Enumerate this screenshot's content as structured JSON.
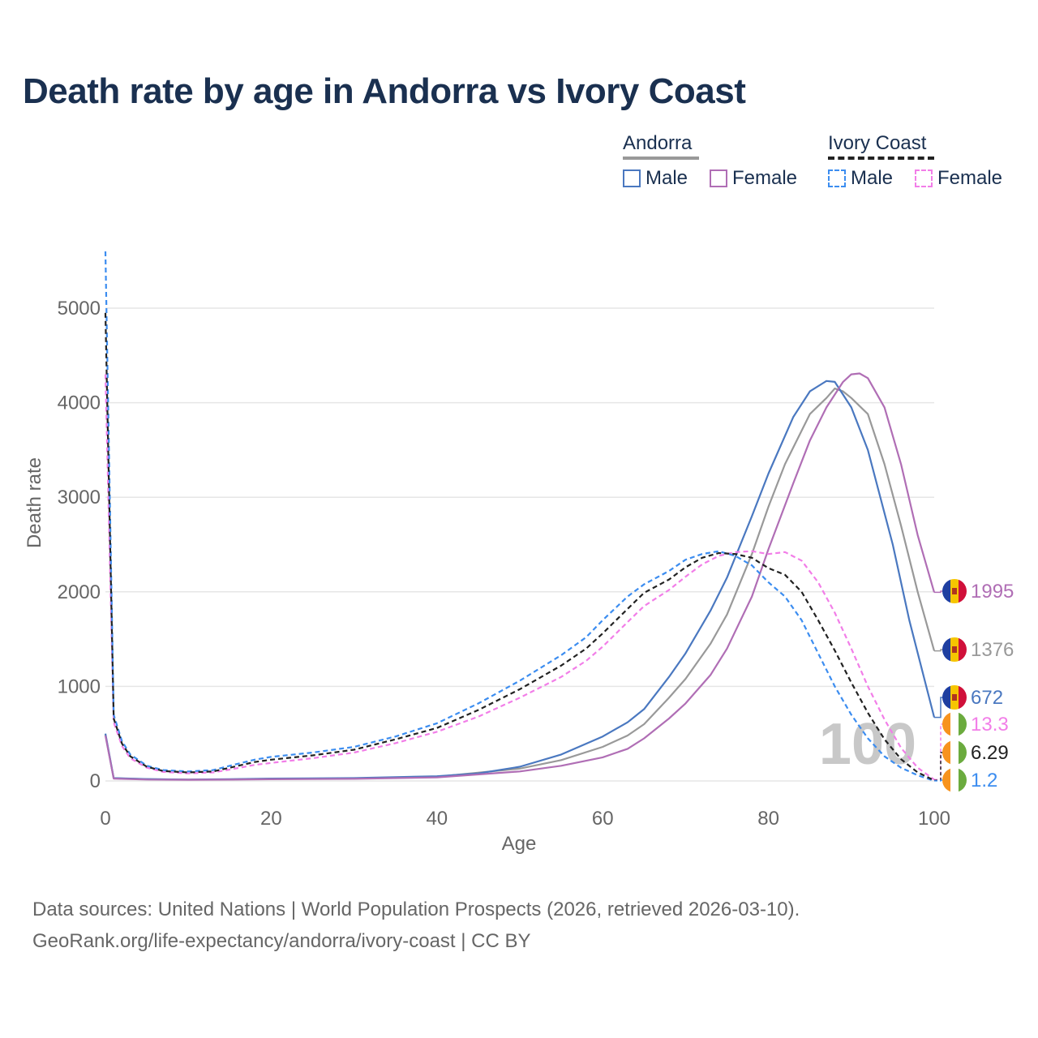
{
  "title": "Death rate by age in Andorra vs Ivory Coast",
  "legend": {
    "groups": [
      {
        "name": "Andorra",
        "items": [
          "Male",
          "Female"
        ]
      },
      {
        "name": "Ivory Coast",
        "items": [
          "Male",
          "Female"
        ]
      }
    ]
  },
  "colors": {
    "andorra_male": "#4a78c0",
    "andorra_female": "#b06eb5",
    "andorra_total": "#999999",
    "ivory_male": "#3c8df0",
    "ivory_female": "#f27ee8",
    "ivory_total": "#222222",
    "grid": "#e6e6e6",
    "axis_text": "#666666"
  },
  "source": {
    "line1": "Data sources: United Nations | World Population Prospects (2026, retrieved 2026-03-10).",
    "line2": "GeoRank.org/life-expectancy/andorra/ivory-coast | CC BY"
  },
  "chart_data": {
    "type": "line",
    "title": "Death rate by age in Andorra vs Ivory Coast",
    "xlabel": "Age",
    "ylabel": "Death rate",
    "xlim": [
      0,
      100
    ],
    "ylim": [
      0,
      5500
    ],
    "xticks": [
      0,
      20,
      40,
      60,
      80,
      100
    ],
    "yticks": [
      0,
      1000,
      2000,
      3000,
      4000,
      5000
    ],
    "xtick_labels": [
      "0",
      "20",
      "40",
      "60",
      "80",
      "100"
    ],
    "ytick_labels": [
      "0",
      "1000",
      "2000",
      "3000",
      "4000",
      "5000"
    ],
    "watermark": "100",
    "series": [
      {
        "name": "Andorra Male",
        "key": "andorra_male",
        "dash": false,
        "end_label": "672",
        "points": [
          [
            0,
            500
          ],
          [
            1,
            30
          ],
          [
            5,
            20
          ],
          [
            10,
            15
          ],
          [
            15,
            18
          ],
          [
            20,
            25
          ],
          [
            30,
            30
          ],
          [
            40,
            50
          ],
          [
            45,
            80
          ],
          [
            50,
            150
          ],
          [
            55,
            280
          ],
          [
            60,
            470
          ],
          [
            63,
            620
          ],
          [
            65,
            760
          ],
          [
            68,
            1100
          ],
          [
            70,
            1350
          ],
          [
            73,
            1800
          ],
          [
            75,
            2150
          ],
          [
            78,
            2800
          ],
          [
            80,
            3250
          ],
          [
            83,
            3850
          ],
          [
            85,
            4120
          ],
          [
            87,
            4230
          ],
          [
            88,
            4220
          ],
          [
            90,
            3950
          ],
          [
            92,
            3500
          ],
          [
            95,
            2500
          ],
          [
            97,
            1700
          ],
          [
            100,
            672
          ]
        ]
      },
      {
        "name": "Andorra Female",
        "key": "andorra_female",
        "dash": false,
        "end_label": "1995",
        "points": [
          [
            0,
            480
          ],
          [
            1,
            25
          ],
          [
            5,
            15
          ],
          [
            10,
            12
          ],
          [
            15,
            14
          ],
          [
            20,
            18
          ],
          [
            30,
            22
          ],
          [
            40,
            38
          ],
          [
            50,
            100
          ],
          [
            55,
            160
          ],
          [
            60,
            250
          ],
          [
            63,
            340
          ],
          [
            65,
            450
          ],
          [
            68,
            660
          ],
          [
            70,
            820
          ],
          [
            73,
            1120
          ],
          [
            75,
            1400
          ],
          [
            78,
            1950
          ],
          [
            80,
            2450
          ],
          [
            83,
            3150
          ],
          [
            85,
            3600
          ],
          [
            87,
            3950
          ],
          [
            89,
            4220
          ],
          [
            90,
            4300
          ],
          [
            91,
            4310
          ],
          [
            92,
            4260
          ],
          [
            94,
            3950
          ],
          [
            96,
            3350
          ],
          [
            98,
            2600
          ],
          [
            100,
            1995
          ]
        ]
      },
      {
        "name": "Andorra Total",
        "key": "andorra_total",
        "dash": false,
        "end_label": "1376",
        "points": [
          [
            0,
            490
          ],
          [
            1,
            28
          ],
          [
            5,
            18
          ],
          [
            10,
            14
          ],
          [
            15,
            16
          ],
          [
            20,
            22
          ],
          [
            30,
            26
          ],
          [
            40,
            45
          ],
          [
            50,
            130
          ],
          [
            55,
            220
          ],
          [
            60,
            360
          ],
          [
            63,
            480
          ],
          [
            65,
            600
          ],
          [
            68,
            880
          ],
          [
            70,
            1080
          ],
          [
            73,
            1450
          ],
          [
            75,
            1760
          ],
          [
            78,
            2400
          ],
          [
            80,
            2900
          ],
          [
            82,
            3350
          ],
          [
            85,
            3880
          ],
          [
            87,
            4050
          ],
          [
            88,
            4150
          ],
          [
            89,
            4120
          ],
          [
            90,
            4050
          ],
          [
            92,
            3880
          ],
          [
            94,
            3350
          ],
          [
            96,
            2700
          ],
          [
            98,
            2000
          ],
          [
            100,
            1376
          ]
        ]
      },
      {
        "name": "Ivory Coast Male",
        "key": "ivory_male",
        "dash": true,
        "end_label": "1.2",
        "points": [
          [
            0,
            5600
          ],
          [
            1,
            700
          ],
          [
            2,
            420
          ],
          [
            3,
            280
          ],
          [
            5,
            160
          ],
          [
            7,
            115
          ],
          [
            10,
            100
          ],
          [
            13,
            115
          ],
          [
            15,
            160
          ],
          [
            18,
            225
          ],
          [
            20,
            255
          ],
          [
            25,
            300
          ],
          [
            30,
            360
          ],
          [
            35,
            470
          ],
          [
            40,
            610
          ],
          [
            45,
            820
          ],
          [
            50,
            1060
          ],
          [
            55,
            1330
          ],
          [
            58,
            1520
          ],
          [
            60,
            1700
          ],
          [
            63,
            1950
          ],
          [
            65,
            2080
          ],
          [
            68,
            2220
          ],
          [
            70,
            2340
          ],
          [
            72,
            2400
          ],
          [
            74,
            2430
          ],
          [
            76,
            2380
          ],
          [
            78,
            2280
          ],
          [
            80,
            2100
          ],
          [
            82,
            1950
          ],
          [
            84,
            1700
          ],
          [
            86,
            1350
          ],
          [
            88,
            1000
          ],
          [
            90,
            700
          ],
          [
            92,
            450
          ],
          [
            94,
            260
          ],
          [
            96,
            140
          ],
          [
            98,
            60
          ],
          [
            100,
            1.2
          ]
        ]
      },
      {
        "name": "Ivory Coast Female",
        "key": "ivory_female",
        "dash": true,
        "end_label": "13.3",
        "points": [
          [
            0,
            4300
          ],
          [
            1,
            620
          ],
          [
            2,
            370
          ],
          [
            3,
            240
          ],
          [
            5,
            140
          ],
          [
            7,
            95
          ],
          [
            10,
            80
          ],
          [
            13,
            90
          ],
          [
            15,
            120
          ],
          [
            18,
            170
          ],
          [
            20,
            190
          ],
          [
            25,
            240
          ],
          [
            30,
            300
          ],
          [
            35,
            400
          ],
          [
            40,
            520
          ],
          [
            45,
            680
          ],
          [
            50,
            880
          ],
          [
            55,
            1100
          ],
          [
            58,
            1270
          ],
          [
            60,
            1420
          ],
          [
            63,
            1680
          ],
          [
            65,
            1850
          ],
          [
            68,
            2020
          ],
          [
            70,
            2160
          ],
          [
            72,
            2290
          ],
          [
            74,
            2380
          ],
          [
            76,
            2420
          ],
          [
            78,
            2430
          ],
          [
            80,
            2400
          ],
          [
            82,
            2420
          ],
          [
            84,
            2330
          ],
          [
            86,
            2100
          ],
          [
            88,
            1780
          ],
          [
            90,
            1400
          ],
          [
            92,
            1000
          ],
          [
            94,
            650
          ],
          [
            96,
            350
          ],
          [
            98,
            140
          ],
          [
            100,
            13.3
          ]
        ]
      },
      {
        "name": "Ivory Coast Total",
        "key": "ivory_total",
        "dash": true,
        "end_label": "6.29",
        "points": [
          [
            0,
            4950
          ],
          [
            1,
            660
          ],
          [
            2,
            395
          ],
          [
            3,
            260
          ],
          [
            5,
            150
          ],
          [
            7,
            105
          ],
          [
            10,
            90
          ],
          [
            13,
            100
          ],
          [
            15,
            140
          ],
          [
            18,
            200
          ],
          [
            20,
            225
          ],
          [
            25,
            270
          ],
          [
            30,
            330
          ],
          [
            35,
            440
          ],
          [
            40,
            560
          ],
          [
            45,
            750
          ],
          [
            50,
            970
          ],
          [
            55,
            1220
          ],
          [
            58,
            1400
          ],
          [
            60,
            1560
          ],
          [
            63,
            1820
          ],
          [
            65,
            1990
          ],
          [
            68,
            2130
          ],
          [
            70,
            2260
          ],
          [
            72,
            2360
          ],
          [
            74,
            2410
          ],
          [
            76,
            2400
          ],
          [
            78,
            2360
          ],
          [
            80,
            2250
          ],
          [
            82,
            2180
          ],
          [
            84,
            2000
          ],
          [
            86,
            1700
          ],
          [
            88,
            1380
          ],
          [
            90,
            1040
          ],
          [
            92,
            720
          ],
          [
            94,
            440
          ],
          [
            96,
            230
          ],
          [
            98,
            90
          ],
          [
            100,
            6.29
          ]
        ]
      }
    ]
  }
}
